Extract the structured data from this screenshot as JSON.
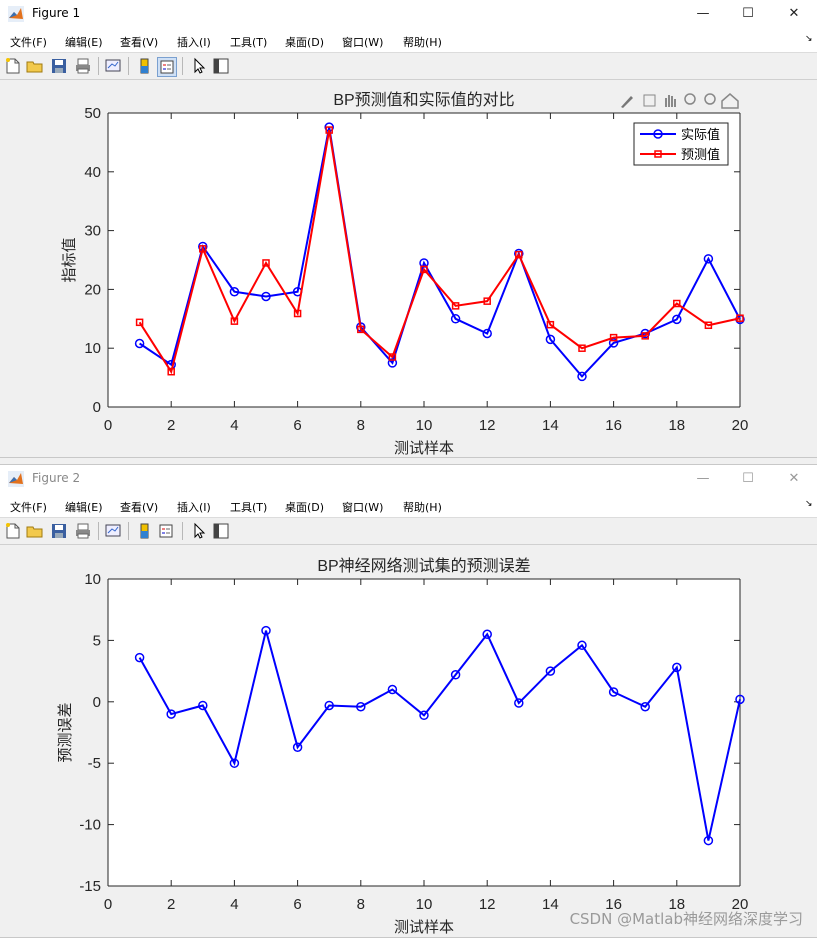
{
  "windows": [
    {
      "title": "Figure 1",
      "active": true,
      "menu": [
        "文件(F)",
        "编辑(E)",
        "查看(V)",
        "插入(I)",
        "工具(T)",
        "桌面(D)",
        "窗口(W)",
        "帮助(H)"
      ]
    },
    {
      "title": "Figure 2",
      "active": false,
      "menu": [
        "文件(F)",
        "编辑(E)",
        "查看(V)",
        "插入(I)",
        "工具(T)",
        "桌面(D)",
        "窗口(W)",
        "帮助(H)"
      ]
    }
  ],
  "chart_data": [
    {
      "type": "line",
      "title": "BP预测值和实际值的对比",
      "xlabel": "测试样本",
      "ylabel": "指标值",
      "xlim": [
        0,
        20
      ],
      "ylim": [
        0,
        50
      ],
      "xticks": [
        0,
        2,
        4,
        6,
        8,
        10,
        12,
        14,
        16,
        18,
        20
      ],
      "yticks": [
        0,
        10,
        20,
        30,
        40,
        50
      ],
      "grid": false,
      "legend_position": "top-right",
      "x": [
        1,
        2,
        3,
        4,
        5,
        6,
        7,
        8,
        9,
        10,
        11,
        12,
        13,
        14,
        15,
        16,
        17,
        18,
        19,
        20
      ],
      "series": [
        {
          "name": "实际值",
          "color": "#0000ff",
          "marker": "circle",
          "values": [
            10.8,
            7.2,
            27.3,
            19.6,
            18.8,
            19.6,
            47.6,
            13.6,
            7.5,
            24.5,
            15.0,
            12.5,
            26.1,
            11.5,
            5.2,
            10.9,
            12.5,
            14.9,
            25.2,
            14.9
          ]
        },
        {
          "name": "预测值",
          "color": "#ff0000",
          "marker": "square",
          "values": [
            14.4,
            6.0,
            26.9,
            14.6,
            24.5,
            15.9,
            47.1,
            13.2,
            8.5,
            23.4,
            17.2,
            18.0,
            25.9,
            14.0,
            10.0,
            11.8,
            12.1,
            17.6,
            13.9,
            15.1
          ]
        }
      ]
    },
    {
      "type": "line",
      "title": "BP神经网络测试集的预测误差",
      "xlabel": "测试样本",
      "ylabel": "预测误差",
      "xlim": [
        0,
        20
      ],
      "ylim": [
        -15,
        10
      ],
      "xticks": [
        0,
        2,
        4,
        6,
        8,
        10,
        12,
        14,
        16,
        18,
        20
      ],
      "yticks": [
        -15,
        -10,
        -5,
        0,
        5,
        10
      ],
      "grid": false,
      "x": [
        1,
        2,
        3,
        4,
        5,
        6,
        7,
        8,
        9,
        10,
        11,
        12,
        13,
        14,
        15,
        16,
        17,
        18,
        19,
        20
      ],
      "series": [
        {
          "color": "#0000ff",
          "marker": "circle",
          "values": [
            3.6,
            -1.0,
            -0.3,
            -5.0,
            5.8,
            -3.7,
            -0.3,
            -0.4,
            1.0,
            -1.1,
            2.2,
            5.5,
            -0.1,
            2.5,
            4.6,
            0.8,
            -0.4,
            2.8,
            -11.3,
            0.2
          ]
        }
      ]
    }
  ],
  "watermark": "CSDN @Matlab神经网络深度学习"
}
